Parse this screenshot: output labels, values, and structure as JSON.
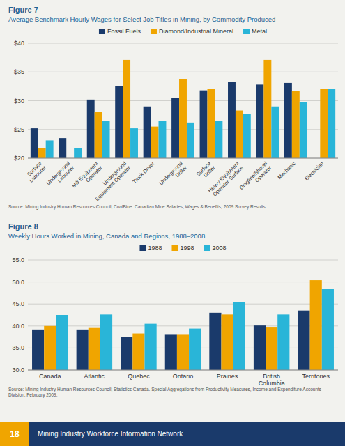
{
  "chart_data": [
    {
      "type": "bar",
      "title": "Figure 7",
      "subtitle": "Average Benchmark Hourly Wages for Select Job Titles in Mining, by Commodity Produced",
      "categories": [
        "Surface\nLabourer",
        "Underground\nLabourer",
        "Mill Equipment\nOperator",
        "Underground\nEquipment Operator",
        "Truck Driver",
        "Underground\nDriller",
        "Surface\nDriller",
        "Heavy Equipment\nOperator-Surface",
        "Dragline/Shovel\nOperator",
        "Mechanic",
        "Electrician"
      ],
      "series": [
        {
          "name": "Fossil Fuels",
          "color": "#1a3a6b",
          "values": [
            25.2,
            23.5,
            30.2,
            32.5,
            29.0,
            30.5,
            31.8,
            33.3,
            32.8,
            33.1,
            null
          ]
        },
        {
          "name": "Diamond/Industrial Mineral",
          "color": "#f0a500",
          "values": [
            21.8,
            null,
            28.1,
            37.1,
            25.5,
            33.8,
            32.0,
            28.3,
            37.1,
            31.7,
            32.0
          ]
        },
        {
          "name": "Metal",
          "color": "#29b5d8",
          "values": [
            23.1,
            21.8,
            26.5,
            25.2,
            26.5,
            26.2,
            26.5,
            27.7,
            29.0,
            29.8,
            32.0
          ]
        }
      ],
      "ylim": [
        20,
        40
      ],
      "yticks": [
        {
          "value": 20,
          "label": "$20"
        },
        {
          "value": 25,
          "label": "$25"
        },
        {
          "value": 30,
          "label": "$30"
        },
        {
          "value": 35,
          "label": "$35"
        },
        {
          "value": 40,
          "label": "$40"
        }
      ],
      "grid": true,
      "legend": "top",
      "annotations": [
        "Source: Mining Industry Human Resources Council; CoalBine: Canadian Mine Salaries, Wages & Benefits, 2009 Survey Results."
      ]
    },
    {
      "type": "bar",
      "title": "Figure 8",
      "subtitle": "Weekly Hours Worked in Mining, Canada and Regions, 1988–2008",
      "categories": [
        "Canada",
        "Atlantic",
        "Quebec",
        "Ontario",
        "Prairies",
        "British\nColumbia",
        "Territories"
      ],
      "series": [
        {
          "name": "1988",
          "color": "#1a3a6b",
          "values": [
            39.2,
            39.2,
            37.5,
            38.0,
            43.0,
            40.1,
            43.5
          ]
        },
        {
          "name": "1998",
          "color": "#f0a500",
          "values": [
            40.0,
            39.7,
            38.3,
            38.0,
            42.6,
            39.8,
            50.4
          ]
        },
        {
          "name": "2008",
          "color": "#29b5d8",
          "values": [
            42.5,
            42.6,
            40.5,
            39.4,
            45.4,
            42.6,
            48.4
          ]
        }
      ],
      "ylim": [
        30,
        55
      ],
      "yticks": [
        {
          "value": 30,
          "label": "30.0"
        },
        {
          "value": 35,
          "label": "35.0"
        },
        {
          "value": 40,
          "label": "40.0"
        },
        {
          "value": 45,
          "label": "45.0"
        },
        {
          "value": 50,
          "label": "50.0"
        },
        {
          "value": 55,
          "label": "55.0"
        }
      ],
      "grid": true,
      "legend": "top",
      "annotations": [
        "Source: Mining Industry Human Resources Council; Statistics Canada. Special Aggregations from Productivity Measures, Income and Expenditure Accounts Division. February 2009.",
        "18",
        "Mining Industry Workforce Information Network"
      ]
    }
  ]
}
